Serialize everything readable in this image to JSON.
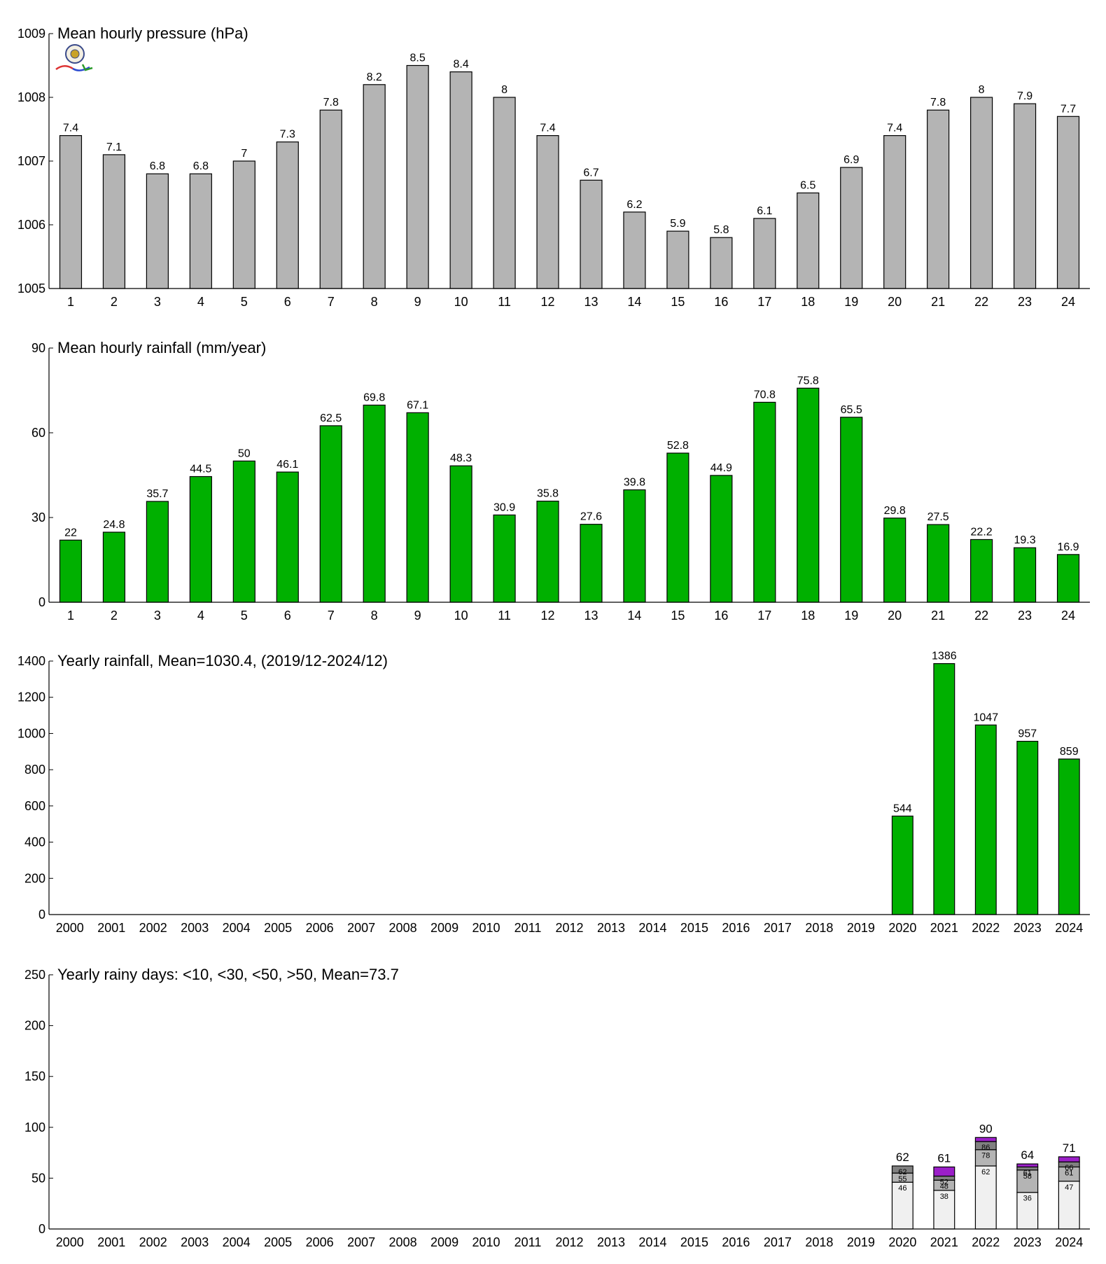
{
  "chart_data": [
    {
      "type": "bar",
      "title": "Mean hourly pressure (hPa)",
      "categories": [
        "1",
        "2",
        "3",
        "4",
        "5",
        "6",
        "7",
        "8",
        "9",
        "10",
        "11",
        "12",
        "13",
        "14",
        "15",
        "16",
        "17",
        "18",
        "19",
        "20",
        "21",
        "22",
        "23",
        "24"
      ],
      "values": [
        1007.4,
        1007.1,
        1006.8,
        1006.8,
        1007.0,
        1007.3,
        1007.8,
        1008.2,
        1008.5,
        1008.4,
        1008.0,
        1007.4,
        1006.7,
        1006.2,
        1005.9,
        1005.8,
        1006.1,
        1006.5,
        1006.9,
        1007.4,
        1007.8,
        1008.0,
        1007.9,
        1007.7
      ],
      "labels": [
        "7.4",
        "7.1",
        "6.8",
        "6.8",
        "7",
        "7.3",
        "7.8",
        "8.2",
        "8.5",
        "8.4",
        "8",
        "7.4",
        "6.7",
        "6.2",
        "5.9",
        "5.8",
        "6.1",
        "6.5",
        "6.9",
        "7.4",
        "7.8",
        "8",
        "7.9",
        "7.7"
      ],
      "ylim": [
        1005,
        1009
      ],
      "yticks": [
        "1005",
        "1006",
        "1007",
        "1008",
        "1009"
      ],
      "ytick_values": [
        1005,
        1006,
        1007,
        1008,
        1009
      ],
      "bar_color": "#b4b4b4",
      "grid": false,
      "has_logo": true
    },
    {
      "type": "bar",
      "title": "Mean hourly rainfall (mm/year)",
      "categories": [
        "1",
        "2",
        "3",
        "4",
        "5",
        "6",
        "7",
        "8",
        "9",
        "10",
        "11",
        "12",
        "13",
        "14",
        "15",
        "16",
        "17",
        "18",
        "19",
        "20",
        "21",
        "22",
        "23",
        "24"
      ],
      "values": [
        22,
        24.8,
        35.7,
        44.5,
        50,
        46.1,
        62.5,
        69.8,
        67.1,
        48.3,
        30.9,
        35.8,
        27.6,
        39.8,
        52.8,
        44.9,
        70.8,
        75.8,
        65.5,
        29.8,
        27.5,
        22.2,
        19.3,
        16.9
      ],
      "labels": [
        "22",
        "24.8",
        "35.7",
        "44.5",
        "50",
        "46.1",
        "62.5",
        "69.8",
        "67.1",
        "48.3",
        "30.9",
        "35.8",
        "27.6",
        "39.8",
        "52.8",
        "44.9",
        "70.8",
        "75.8",
        "65.5",
        "29.8",
        "27.5",
        "22.2",
        "19.3",
        "16.9"
      ],
      "ylim": [
        0,
        90
      ],
      "yticks": [
        "0",
        "30",
        "60",
        "90"
      ],
      "ytick_values": [
        0,
        30,
        60,
        90
      ],
      "bar_color": "#00b000",
      "grid": false
    },
    {
      "type": "bar",
      "title": "Yearly rainfall, Mean=1030.4, (2019/12-2024/12)",
      "categories": [
        "2000",
        "2001",
        "2002",
        "2003",
        "2004",
        "2005",
        "2006",
        "2007",
        "2008",
        "2009",
        "2010",
        "2011",
        "2012",
        "2013",
        "2014",
        "2015",
        "2016",
        "2017",
        "2018",
        "2019",
        "2020",
        "2021",
        "2022",
        "2023",
        "2024"
      ],
      "values": [
        null,
        null,
        null,
        null,
        null,
        null,
        null,
        null,
        null,
        null,
        null,
        null,
        null,
        null,
        null,
        null,
        null,
        null,
        null,
        null,
        544,
        1386,
        1047,
        957,
        859
      ],
      "labels": [
        "",
        "",
        "",
        "",
        "",
        "",
        "",
        "",
        "",
        "",
        "",
        "",
        "",
        "",
        "",
        "",
        "",
        "",
        "",
        "",
        "544",
        "1386",
        "1047",
        "957",
        "859"
      ],
      "ylim": [
        0,
        1400
      ],
      "yticks": [
        "0",
        "200",
        "400",
        "600",
        "800",
        "1000",
        "1200",
        "1400"
      ],
      "ytick_values": [
        0,
        200,
        400,
        600,
        800,
        1000,
        1200,
        1400
      ],
      "bar_color": "#00b000",
      "grid": false
    },
    {
      "type": "stacked_bar",
      "title": "Yearly rainy days: <10, <30, <50, >50, Mean=73.7",
      "categories": [
        "2000",
        "2001",
        "2002",
        "2003",
        "2004",
        "2005",
        "2006",
        "2007",
        "2008",
        "2009",
        "2010",
        "2011",
        "2012",
        "2013",
        "2014",
        "2015",
        "2016",
        "2017",
        "2018",
        "2019",
        "2020",
        "2021",
        "2022",
        "2023",
        "2024"
      ],
      "series": [
        {
          "colour": "#f0f0f0",
          "values": [
            null,
            null,
            null,
            null,
            null,
            null,
            null,
            null,
            null,
            null,
            null,
            null,
            null,
            null,
            null,
            null,
            null,
            null,
            null,
            null,
            46,
            38,
            62,
            36,
            47
          ]
        },
        {
          "colour": "#b4b4b4",
          "values": [
            null,
            null,
            null,
            null,
            null,
            null,
            null,
            null,
            null,
            null,
            null,
            null,
            null,
            null,
            null,
            null,
            null,
            null,
            null,
            null,
            9,
            10,
            16,
            22,
            14
          ]
        },
        {
          "colour": "#808080",
          "values": [
            null,
            null,
            null,
            null,
            null,
            null,
            null,
            null,
            null,
            null,
            null,
            null,
            null,
            null,
            null,
            null,
            null,
            null,
            null,
            null,
            7,
            4,
            8,
            3,
            5
          ]
        },
        {
          "colour": "#9b1fc8",
          "values": [
            null,
            null,
            null,
            null,
            null,
            null,
            null,
            null,
            null,
            null,
            null,
            null,
            null,
            null,
            null,
            null,
            null,
            null,
            null,
            null,
            0,
            9,
            4,
            3,
            5
          ]
        }
      ],
      "segment_labels": [
        [
          "46",
          "55",
          "62"
        ],
        [
          "38",
          "48",
          "52"
        ],
        [
          "62",
          "78",
          "86"
        ],
        [
          "36",
          "58",
          "61"
        ],
        [
          "47",
          "61",
          "66"
        ]
      ],
      "totals": [
        "62",
        "61",
        "90",
        "64",
        "71"
      ],
      "ylim": [
        0,
        250
      ],
      "yticks": [
        "0",
        "50",
        "100",
        "150",
        "200",
        "250"
      ],
      "ytick_values": [
        0,
        50,
        100,
        150,
        200,
        250
      ],
      "grid": false
    }
  ]
}
